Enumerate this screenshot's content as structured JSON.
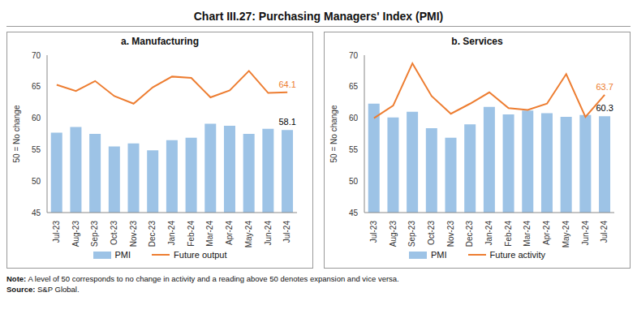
{
  "title": "Chart III.27: Purchasing Managers' Index (PMI)",
  "note": "Note: A level of 50 corresponds to no change in activity and a reading above 50 denotes expansion and vice versa.",
  "source": "Source: S&P Global.",
  "chart_data": [
    {
      "type": "bar",
      "title": "a. Manufacturing",
      "y_label": "50 = No change",
      "categories": [
        "Jul-23",
        "Aug-23",
        "Sep-23",
        "Oct-23",
        "Nov-23",
        "Dec-23",
        "Jan-24",
        "Feb-24",
        "Mar-24",
        "Apr-24",
        "May-24",
        "Jun-24",
        "Jul-24"
      ],
      "ylim": [
        45,
        70
      ],
      "yticks": [
        45,
        50,
        55,
        60,
        65,
        70
      ],
      "grid": false,
      "series": [
        {
          "name": "PMI",
          "type": "bar",
          "color": "#9dc3e6",
          "values": [
            57.7,
            58.6,
            57.5,
            55.5,
            56.0,
            54.9,
            56.5,
            56.9,
            59.1,
            58.8,
            57.5,
            58.3,
            58.1
          ]
        },
        {
          "name": "Future output",
          "type": "line",
          "color": "#ed7d31",
          "values": [
            65.3,
            64.3,
            65.9,
            63.5,
            62.3,
            64.9,
            66.6,
            66.4,
            63.3,
            64.4,
            67.5,
            64.0,
            64.1
          ]
        }
      ],
      "annotations": [
        {
          "text": "58.1",
          "x": "Jul-24",
          "y": 58.1,
          "color": "#000000"
        },
        {
          "text": "64.1",
          "x": "Jul-24",
          "y": 64.1,
          "color": "#ed7d31"
        }
      ]
    },
    {
      "type": "bar",
      "title": "b. Services",
      "y_label": "50 = No change",
      "categories": [
        "Jul-23",
        "Aug-23",
        "Sep-23",
        "Oct-23",
        "Nov-23",
        "Dec-23",
        "Jan-24",
        "Feb-24",
        "Mar-24",
        "Apr-24",
        "May-24",
        "Jun-24",
        "Jul-24"
      ],
      "ylim": [
        45,
        70
      ],
      "yticks": [
        45,
        50,
        55,
        60,
        65,
        70
      ],
      "grid": false,
      "series": [
        {
          "name": "PMI",
          "type": "bar",
          "color": "#9dc3e6",
          "values": [
            62.3,
            60.1,
            61.0,
            58.4,
            56.9,
            59.0,
            61.8,
            60.6,
            61.2,
            60.8,
            60.2,
            60.5,
            60.3
          ]
        },
        {
          "name": "Future activity",
          "type": "line",
          "color": "#ed7d31",
          "values": [
            60.0,
            62.0,
            68.7,
            63.5,
            60.7,
            62.3,
            64.1,
            61.6,
            61.3,
            62.3,
            67.0,
            60.2,
            63.7
          ]
        }
      ],
      "annotations": [
        {
          "text": "60.3",
          "x": "Jul-24",
          "y": 60.3,
          "color": "#000000"
        },
        {
          "text": "63.7",
          "x": "Jul-24",
          "y": 63.7,
          "color": "#ed7d31"
        }
      ]
    }
  ]
}
